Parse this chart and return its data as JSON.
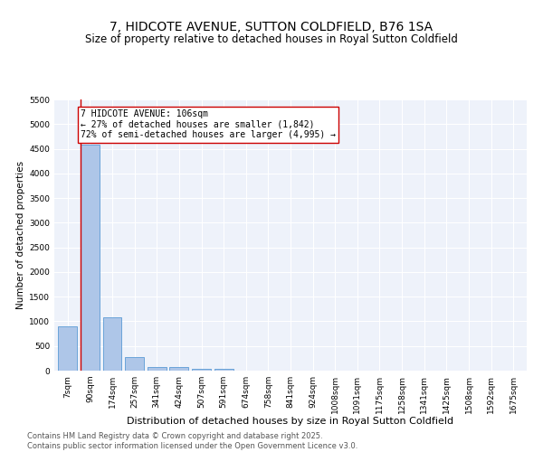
{
  "title": "7, HIDCOTE AVENUE, SUTTON COLDFIELD, B76 1SA",
  "subtitle": "Size of property relative to detached houses in Royal Sutton Coldfield",
  "xlabel": "Distribution of detached houses by size in Royal Sutton Coldfield",
  "ylabel": "Number of detached properties",
  "categories": [
    "7sqm",
    "90sqm",
    "174sqm",
    "257sqm",
    "341sqm",
    "424sqm",
    "507sqm",
    "591sqm",
    "674sqm",
    "758sqm",
    "841sqm",
    "924sqm",
    "1008sqm",
    "1091sqm",
    "1175sqm",
    "1258sqm",
    "1341sqm",
    "1425sqm",
    "1508sqm",
    "1592sqm",
    "1675sqm"
  ],
  "values": [
    890,
    4580,
    1080,
    280,
    80,
    70,
    45,
    30,
    0,
    0,
    0,
    0,
    0,
    0,
    0,
    0,
    0,
    0,
    0,
    0,
    0
  ],
  "bar_color": "#aec6e8",
  "bar_edge_color": "#5b9bd5",
  "property_line_color": "#cc0000",
  "annotation_text": "7 HIDCOTE AVENUE: 106sqm\n← 27% of detached houses are smaller (1,842)\n72% of semi-detached houses are larger (4,995) →",
  "annotation_box_color": "#cc0000",
  "ylim": [
    0,
    5500
  ],
  "yticks": [
    0,
    500,
    1000,
    1500,
    2000,
    2500,
    3000,
    3500,
    4000,
    4500,
    5000,
    5500
  ],
  "background_color": "#eef2fa",
  "footer_text": "Contains HM Land Registry data © Crown copyright and database right 2025.\nContains public sector information licensed under the Open Government Licence v3.0.",
  "title_fontsize": 10,
  "subtitle_fontsize": 8.5,
  "xlabel_fontsize": 8,
  "ylabel_fontsize": 7.5,
  "tick_fontsize": 6.5,
  "annotation_fontsize": 7,
  "footer_fontsize": 6
}
